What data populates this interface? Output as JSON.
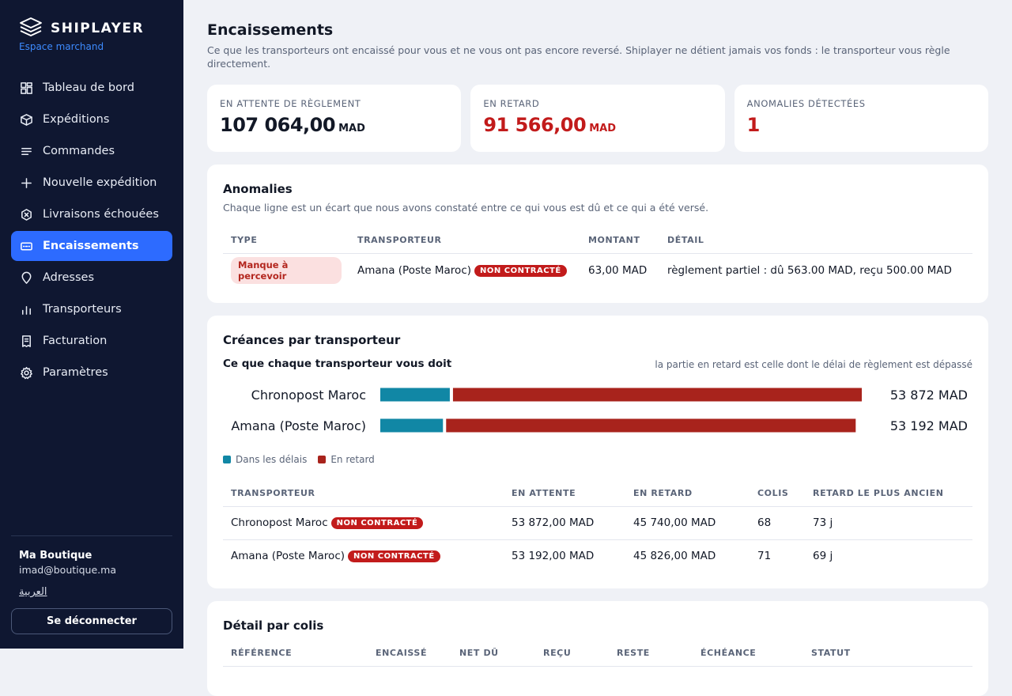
{
  "sidebar": {
    "brand": "SHIPLAYER",
    "subtitle": "Espace marchand",
    "items": [
      {
        "label": "Tableau de bord",
        "icon": "dashboard-icon"
      },
      {
        "label": "Expéditions",
        "icon": "box-icon"
      },
      {
        "label": "Commandes",
        "icon": "list-icon"
      },
      {
        "label": "Nouvelle expédition",
        "icon": "plus-icon"
      },
      {
        "label": "Livraisons échouées",
        "icon": "failed-icon"
      },
      {
        "label": "Encaissements",
        "icon": "cash-icon",
        "active": true
      },
      {
        "label": "Adresses",
        "icon": "pin-icon"
      },
      {
        "label": "Transporteurs",
        "icon": "bar-chart-icon"
      },
      {
        "label": "Facturation",
        "icon": "invoice-icon"
      },
      {
        "label": "Paramètres",
        "icon": "gear-icon"
      }
    ],
    "shop_name": "Ma Boutique",
    "shop_email": "imad@boutique.ma",
    "lang_link": "العربية",
    "logout": "Se déconnecter"
  },
  "page": {
    "title": "Encaissements",
    "subtitle": "Ce que les transporteurs ont encaissé pour vous et ne vous ont pas encore reversé. Shiplayer ne détient jamais vos fonds : le transporteur vous règle directement."
  },
  "stats": [
    {
      "label": "EN ATTENTE DE RÈGLEMENT",
      "value": "107 064,00",
      "unit": "MAD",
      "alert": false
    },
    {
      "label": "EN RETARD",
      "value": "91 566,00",
      "unit": "MAD",
      "alert": true
    },
    {
      "label": "ANOMALIES DÉTECTÉES",
      "value": "1",
      "unit": "",
      "alert": true
    }
  ],
  "anomalies": {
    "title": "Anomalies",
    "subtitle": "Chaque ligne est un écart que nous avons constaté entre ce qui vous est dû et ce qui a été versé.",
    "headers": [
      "TYPE",
      "TRANSPORTEUR",
      "MONTANT",
      "DÉTAIL"
    ],
    "rows": [
      {
        "type": "Manque à percevoir",
        "carrier": "Amana (Poste Maroc)",
        "badge": "NON CONTRACTÉ",
        "amount": "63,00 MAD",
        "detail": "règlement partiel : dû 563.00 MAD, reçu 500.00 MAD"
      }
    ]
  },
  "creances": {
    "title": "Créances par transporteur",
    "chart_title": "Ce que chaque transporteur vous doit",
    "chart_note": "la partie en retard est celle dont le délai de règlement est dépassé",
    "legend": [
      "Dans les délais",
      "En retard"
    ],
    "headers": [
      "TRANSPORTEUR",
      "EN ATTENTE",
      "EN RETARD",
      "COLIS",
      "RETARD LE PLUS ANCIEN"
    ],
    "rows": [
      {
        "carrier": "Chronopost Maroc",
        "badge": "NON CONTRACTÉ",
        "pending": "53 872,00 MAD",
        "late": "45 740,00 MAD",
        "parcels": "68",
        "oldest": "73 j"
      },
      {
        "carrier": "Amana (Poste Maroc)",
        "badge": "NON CONTRACTÉ",
        "pending": "53 192,00 MAD",
        "late": "45 826,00 MAD",
        "parcels": "71",
        "oldest": "69 j"
      }
    ]
  },
  "detail": {
    "title": "Détail par colis",
    "headers": [
      "RÉFÉRENCE",
      "ENCAISSÉ",
      "NET DÛ",
      "REÇU",
      "RESTE",
      "ÉCHÉANCE",
      "STATUT"
    ]
  },
  "chart_data": {
    "type": "bar",
    "stacked": true,
    "orientation": "horizontal",
    "title": "Ce que chaque transporteur vous doit",
    "categories": [
      "Chronopost Maroc",
      "Amana (Poste Maroc)"
    ],
    "series": [
      {
        "name": "Dans les délais",
        "values": [
          8132,
          7366
        ],
        "color": "#1187a5"
      },
      {
        "name": "En retard",
        "values": [
          45740,
          45826
        ],
        "color": "#a8231c"
      }
    ],
    "totals": [
      "53 872 MAD",
      "53 192 MAD"
    ],
    "xlim": [
      0,
      53872
    ]
  },
  "colors": {
    "accent": "#2d6bff",
    "sidebar": "#0f1731",
    "alert": "#c21b1b"
  }
}
